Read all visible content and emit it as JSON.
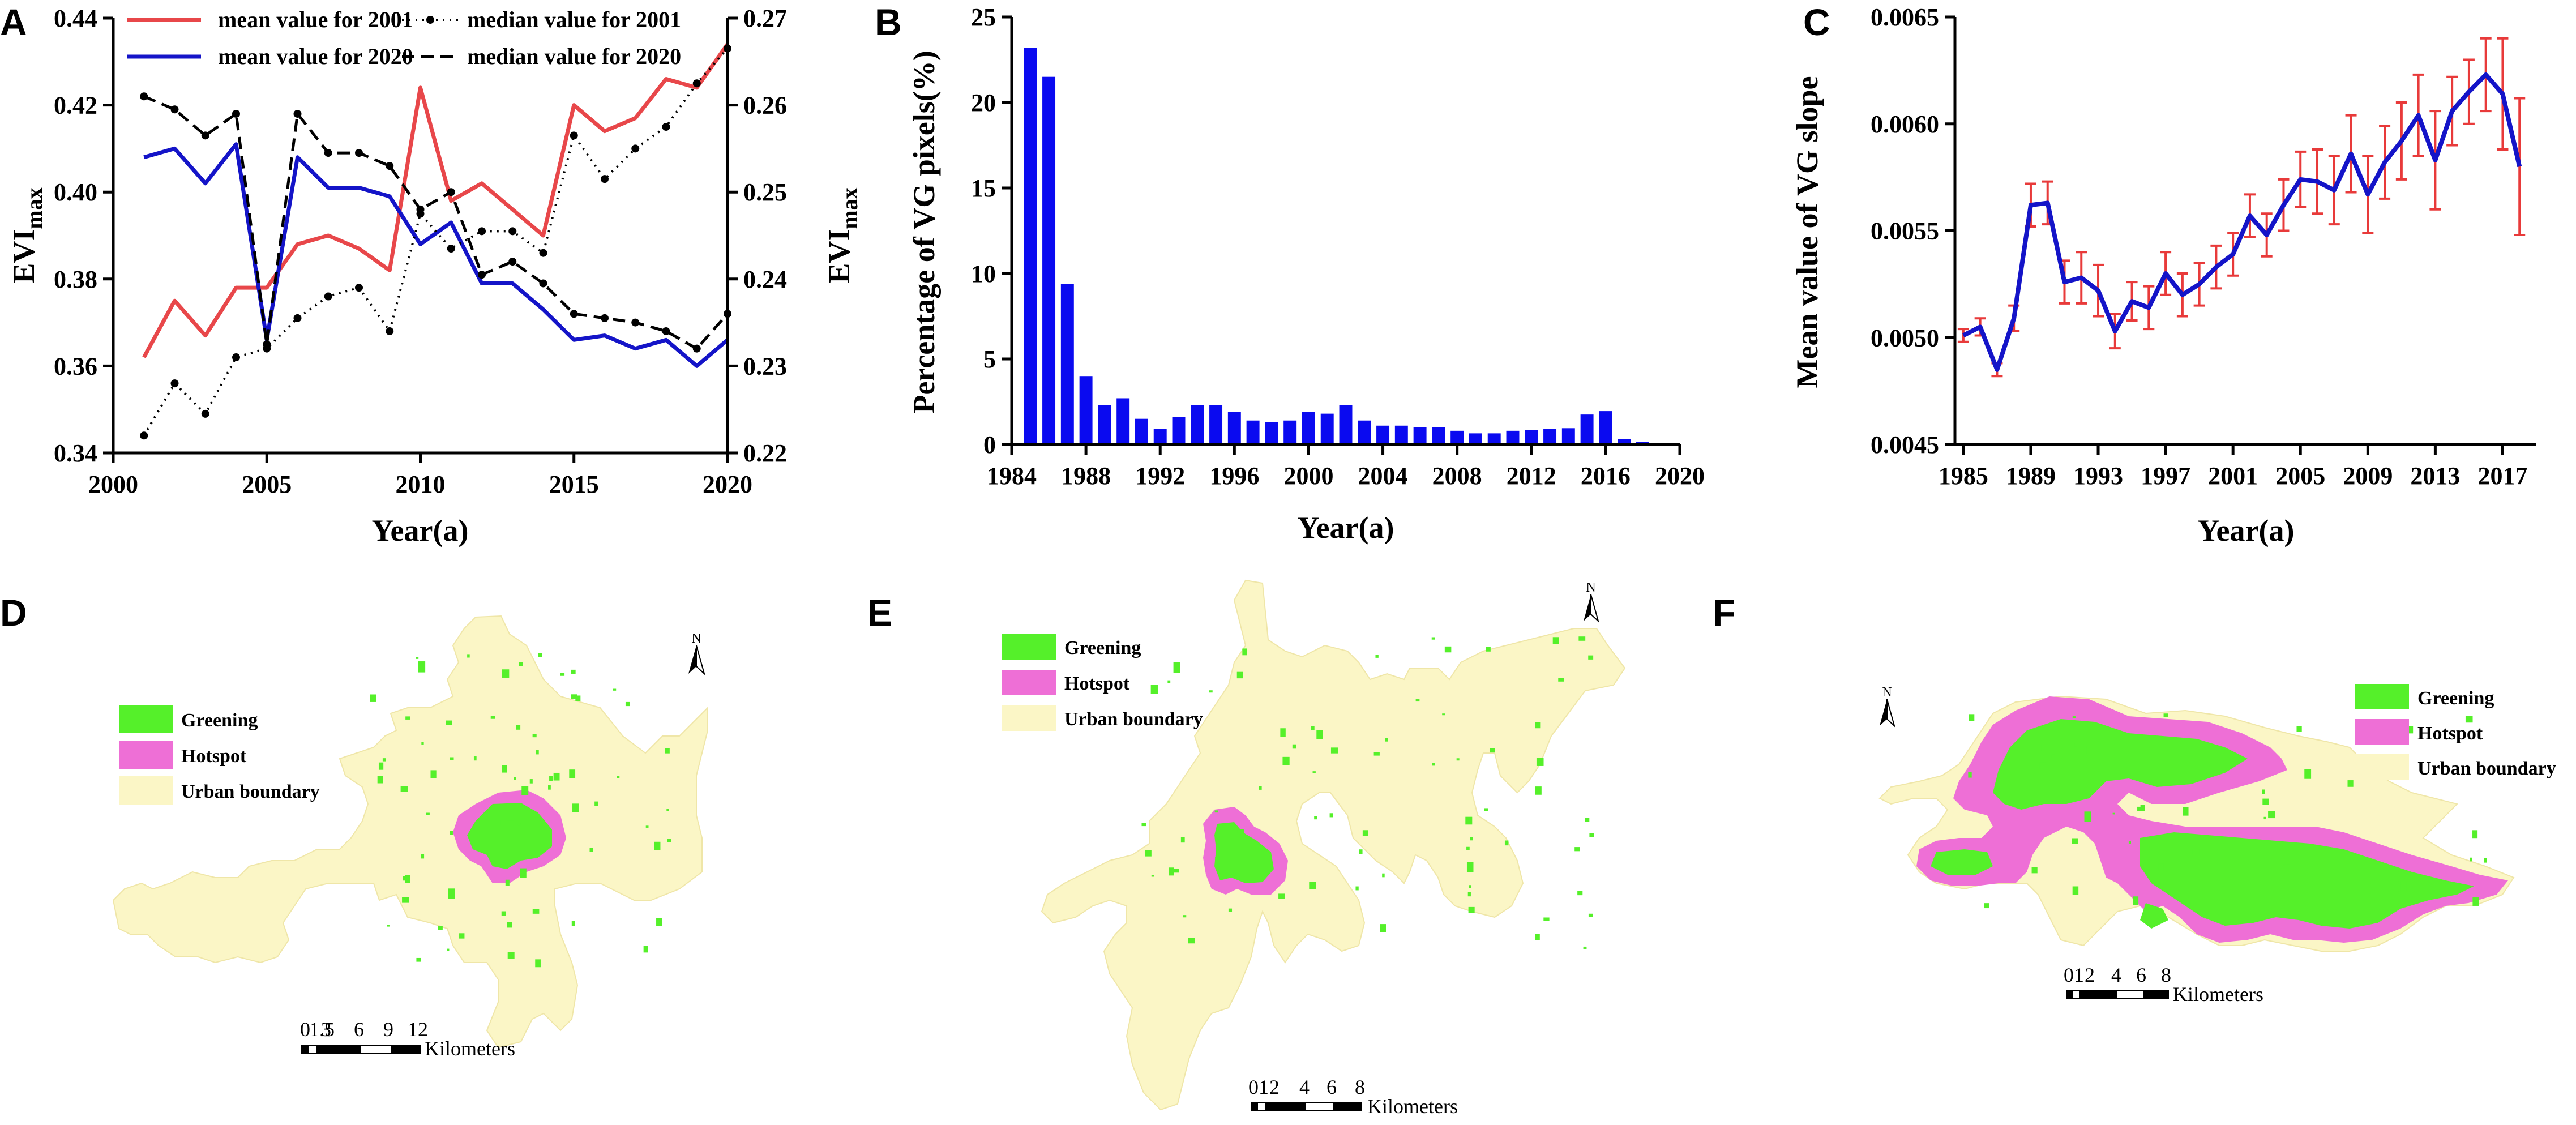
{
  "panels": {
    "a": "A",
    "b": "B",
    "c": "C",
    "d": "D",
    "e": "E",
    "f": "F"
  },
  "colors": {
    "red": "#e8474a",
    "blue": "#1414c8",
    "bar_blue": "#0a0af0",
    "error_red": "#e83a3a",
    "greening": "#55f02a",
    "hotspot": "#ee6fd6",
    "urban": "#fbf6c6"
  },
  "chart_data": [
    {
      "type": "line",
      "panel": "A",
      "xlabel": "Year(a)",
      "ylabel_left": "EVI",
      "ylabel_left_sub": "max",
      "ylabel_right": "EVI",
      "ylabel_right_sub": "max",
      "xlim": [
        2000,
        2020
      ],
      "ylim_left": [
        0.34,
        0.44
      ],
      "ylim_right": [
        0.22,
        0.27
      ],
      "x_ticks": [
        "2000",
        "2005",
        "2010",
        "2015",
        "2020"
      ],
      "y_ticks_left": [
        "0.34",
        "0.36",
        "0.38",
        "0.40",
        "0.42",
        "0.44"
      ],
      "y_ticks_right": [
        "0.22",
        "0.23",
        "0.24",
        "0.25",
        "0.26",
        "0.27"
      ],
      "x": [
        2001,
        2002,
        2003,
        2004,
        2005,
        2006,
        2007,
        2008,
        2009,
        2010,
        2011,
        2012,
        2013,
        2014,
        2015,
        2016,
        2017,
        2018,
        2019,
        2020
      ],
      "series": [
        {
          "name": "mean value for 2001",
          "axis": "left",
          "style": "solid",
          "color": "#e8474a",
          "values": [
            0.362,
            0.375,
            0.367,
            0.378,
            0.378,
            0.388,
            0.39,
            0.387,
            0.382,
            0.424,
            0.398,
            0.402,
            0.396,
            0.39,
            0.42,
            0.414,
            0.417,
            0.426,
            0.424,
            0.434
          ]
        },
        {
          "name": "mean value for 2020",
          "axis": "left",
          "style": "solid",
          "color": "#1414c8",
          "values": [
            0.408,
            0.41,
            0.402,
            0.411,
            0.366,
            0.408,
            0.401,
            0.401,
            0.399,
            0.388,
            0.393,
            0.379,
            0.379,
            0.373,
            0.366,
            0.367,
            0.364,
            0.366,
            0.36,
            0.366
          ]
        },
        {
          "name": "median value for 2001",
          "axis": "right",
          "style": "dotted",
          "color": "#000000",
          "values": [
            0.222,
            0.228,
            0.2245,
            0.231,
            0.232,
            0.2355,
            0.238,
            0.239,
            0.234,
            0.2475,
            0.2435,
            0.2455,
            0.2455,
            0.243,
            0.2565,
            0.2515,
            0.255,
            0.2575,
            0.2625,
            0.2665
          ]
        },
        {
          "name": "median value for 2020",
          "axis": "right",
          "style": "dashed",
          "color": "#000000",
          "values": [
            0.261,
            0.2595,
            0.2565,
            0.259,
            0.2325,
            0.259,
            0.2545,
            0.2545,
            0.253,
            0.248,
            0.25,
            0.2405,
            0.242,
            0.2395,
            0.236,
            0.2355,
            0.235,
            0.234,
            0.232,
            0.236
          ]
        }
      ]
    },
    {
      "type": "bar",
      "panel": "B",
      "xlabel": "Year(a)",
      "ylabel": "Percentage of VG pixels(%)",
      "ylim": [
        0,
        25
      ],
      "xlim": [
        1984,
        2020
      ],
      "x_ticks": [
        "1984",
        "1988",
        "1992",
        "1996",
        "2000",
        "2004",
        "2008",
        "2012",
        "2016",
        "2020"
      ],
      "y_ticks": [
        "0",
        "5",
        "10",
        "15",
        "20",
        "25"
      ],
      "categories": [
        1985,
        1986,
        1987,
        1988,
        1989,
        1990,
        1991,
        1992,
        1993,
        1994,
        1995,
        1996,
        1997,
        1998,
        1999,
        2000,
        2001,
        2002,
        2003,
        2004,
        2005,
        2006,
        2007,
        2008,
        2009,
        2010,
        2011,
        2012,
        2013,
        2014,
        2015,
        2016,
        2017,
        2018,
        2019
      ],
      "values": [
        23.2,
        21.5,
        9.4,
        4.0,
        2.3,
        2.7,
        1.5,
        0.9,
        1.6,
        2.3,
        2.3,
        1.9,
        1.4,
        1.3,
        1.4,
        1.9,
        1.8,
        2.3,
        1.4,
        1.1,
        1.1,
        1.0,
        1.0,
        0.8,
        0.65,
        0.65,
        0.8,
        0.85,
        0.9,
        0.95,
        1.75,
        1.95,
        0.3,
        0.15,
        0.08
      ]
    },
    {
      "type": "line",
      "panel": "C",
      "xlabel": "Year(a)",
      "ylabel": "Mean value of VG slope",
      "ylim": [
        0.0045,
        0.0065
      ],
      "xlim": [
        1984.5,
        2019
      ],
      "x_ticks": [
        "1985",
        "1989",
        "1993",
        "1997",
        "2001",
        "2005",
        "2009",
        "2013",
        "2017"
      ],
      "y_ticks": [
        "0.0045",
        "0.0050",
        "0.0055",
        "0.0060",
        "0.0065"
      ],
      "x": [
        1985,
        1986,
        1987,
        1988,
        1989,
        1990,
        1991,
        1992,
        1993,
        1994,
        1995,
        1996,
        1997,
        1998,
        1999,
        2000,
        2001,
        2002,
        2003,
        2004,
        2005,
        2006,
        2007,
        2008,
        2009,
        2010,
        2011,
        2012,
        2013,
        2014,
        2015,
        2016,
        2017,
        2018
      ],
      "values": [
        0.00501,
        0.00505,
        0.00485,
        0.00509,
        0.00562,
        0.00563,
        0.00526,
        0.00528,
        0.00522,
        0.00503,
        0.00517,
        0.00514,
        0.0053,
        0.0052,
        0.00525,
        0.00533,
        0.00539,
        0.00557,
        0.00548,
        0.00562,
        0.00574,
        0.00573,
        0.00569,
        0.00586,
        0.00567,
        0.00582,
        0.00592,
        0.00604,
        0.00583,
        0.00606,
        0.00615,
        0.00623,
        0.00614,
        0.0058
      ],
      "errors": [
        3e-05,
        4e-05,
        3e-05,
        6e-05,
        0.0001,
        0.0001,
        0.0001,
        0.00012,
        0.00012,
        8e-05,
        9e-05,
        0.0001,
        0.0001,
        0.0001,
        0.0001,
        0.0001,
        0.0001,
        0.0001,
        0.0001,
        0.00012,
        0.00013,
        0.00015,
        0.00016,
        0.00018,
        0.00018,
        0.00017,
        0.00018,
        0.00019,
        0.00023,
        0.00016,
        0.00015,
        0.00017,
        0.00026,
        0.00032
      ]
    }
  ],
  "maps": {
    "d": {
      "legend": [
        "Greening",
        "Hotspot",
        "Urban boundary"
      ],
      "north": "N",
      "scale_ticks": [
        "0",
        "1.5",
        "3",
        "6",
        "9",
        "12"
      ],
      "scale_unit": "Kilometers"
    },
    "e": {
      "legend": [
        "Greening",
        "Hotspot",
        "Urban boundary"
      ],
      "north": "N",
      "scale_ticks": [
        "0",
        "1",
        "2",
        "4",
        "6",
        "8"
      ],
      "scale_unit": "Kilometers"
    },
    "f": {
      "legend": [
        "Greening",
        "Hotspot",
        "Urban boundary"
      ],
      "north": "N",
      "scale_ticks": [
        "0",
        "1",
        "2",
        "4",
        "6",
        "8"
      ],
      "scale_unit": "Kilometers"
    }
  }
}
